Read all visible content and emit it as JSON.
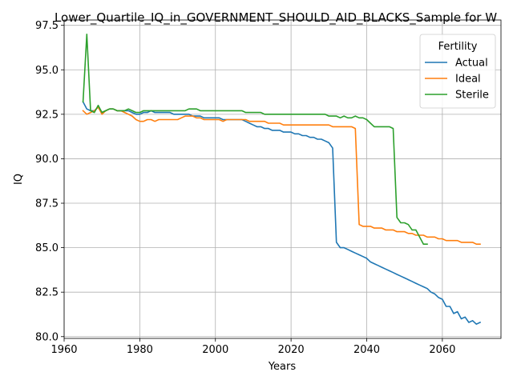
{
  "chart_data": {
    "type": "line",
    "title": "Lower_Quartile_IQ_in_GOVERNMENT_SHOULD_AID_BLACKS_Sample for W",
    "xlabel": "Years",
    "ylabel": "IQ",
    "xlim": [
      1960,
      2075.5
    ],
    "ylim": [
      79.9,
      97.8
    ],
    "xticks": [
      1960,
      1980,
      2000,
      2020,
      2040,
      2060
    ],
    "yticks": [
      80.0,
      82.5,
      85.0,
      87.5,
      90.0,
      92.5,
      95.0,
      97.5
    ],
    "xtick_labels": [
      "1960",
      "1980",
      "2000",
      "2020",
      "2040",
      "2060"
    ],
    "ytick_labels": [
      "80.0",
      "82.5",
      "85.0",
      "87.5",
      "90.0",
      "92.5",
      "95.0",
      "97.5"
    ],
    "grid": true,
    "legend": {
      "title": "Fertility",
      "position": "top-right"
    },
    "series": [
      {
        "name": "Actual",
        "color": "#1f77b4",
        "x": [
          1965,
          1966,
          1967,
          1968,
          1969,
          1970,
          1971,
          1972,
          1973,
          1974,
          1975,
          1976,
          1977,
          1978,
          1979,
          1980,
          1981,
          1982,
          1983,
          1984,
          1985,
          1986,
          1987,
          1988,
          1989,
          1990,
          1991,
          1992,
          1993,
          1994,
          1995,
          1996,
          1997,
          1998,
          1999,
          2000,
          2001,
          2002,
          2003,
          2004,
          2005,
          2006,
          2007,
          2008,
          2009,
          2010,
          2011,
          2012,
          2013,
          2014,
          2015,
          2016,
          2017,
          2018,
          2019,
          2020,
          2021,
          2022,
          2023,
          2024,
          2025,
          2026,
          2027,
          2028,
          2029,
          2030,
          2031,
          2032,
          2033,
          2034,
          2035,
          2036,
          2037,
          2038,
          2039,
          2040,
          2041,
          2042,
          2043,
          2044,
          2045,
          2046,
          2047,
          2048,
          2049,
          2050,
          2051,
          2052,
          2053,
          2054,
          2055,
          2056,
          2057,
          2058,
          2059,
          2060,
          2061,
          2062,
          2063,
          2064,
          2065,
          2066,
          2067,
          2068,
          2069,
          2070
        ],
        "y": [
          93.2,
          92.8,
          92.7,
          92.7,
          92.9,
          92.6,
          92.7,
          92.8,
          92.8,
          92.7,
          92.7,
          92.7,
          92.7,
          92.6,
          92.5,
          92.5,
          92.6,
          92.6,
          92.7,
          92.6,
          92.6,
          92.6,
          92.6,
          92.6,
          92.5,
          92.5,
          92.5,
          92.5,
          92.5,
          92.4,
          92.4,
          92.4,
          92.3,
          92.3,
          92.3,
          92.3,
          92.3,
          92.2,
          92.2,
          92.2,
          92.2,
          92.2,
          92.2,
          92.1,
          92.0,
          91.9,
          91.8,
          91.8,
          91.7,
          91.7,
          91.6,
          91.6,
          91.6,
          91.5,
          91.5,
          91.5,
          91.4,
          91.4,
          91.3,
          91.3,
          91.2,
          91.2,
          91.1,
          91.1,
          91.0,
          90.9,
          90.6,
          85.3,
          85.0,
          85.0,
          84.9,
          84.8,
          84.7,
          84.6,
          84.5,
          84.4,
          84.2,
          84.1,
          84.0,
          83.9,
          83.8,
          83.7,
          83.6,
          83.5,
          83.4,
          83.3,
          83.2,
          83.1,
          83.0,
          82.9,
          82.8,
          82.7,
          82.5,
          82.4,
          82.2,
          82.1,
          81.7,
          81.7,
          81.3,
          81.4,
          81.0,
          81.1,
          80.8,
          80.9,
          80.7,
          80.8
        ]
      },
      {
        "name": "Ideal",
        "color": "#ff7f0e",
        "x": [
          1965,
          1966,
          1967,
          1968,
          1969,
          1970,
          1971,
          1972,
          1973,
          1974,
          1975,
          1976,
          1977,
          1978,
          1979,
          1980,
          1981,
          1982,
          1983,
          1984,
          1985,
          1986,
          1987,
          1988,
          1989,
          1990,
          1991,
          1992,
          1993,
          1994,
          1995,
          1996,
          1997,
          1998,
          1999,
          2000,
          2001,
          2002,
          2003,
          2004,
          2005,
          2006,
          2007,
          2008,
          2009,
          2010,
          2011,
          2012,
          2013,
          2014,
          2015,
          2016,
          2017,
          2018,
          2019,
          2020,
          2021,
          2022,
          2023,
          2024,
          2025,
          2026,
          2027,
          2028,
          2029,
          2030,
          2031,
          2032,
          2033,
          2034,
          2035,
          2036,
          2037,
          2038,
          2039,
          2040,
          2041,
          2042,
          2043,
          2044,
          2045,
          2046,
          2047,
          2048,
          2049,
          2050,
          2051,
          2052,
          2053,
          2054,
          2055,
          2056,
          2057,
          2058,
          2059,
          2060,
          2061,
          2062,
          2063,
          2064,
          2065,
          2066,
          2067,
          2068,
          2069,
          2070
        ],
        "y": [
          92.7,
          92.5,
          92.6,
          92.7,
          92.9,
          92.5,
          92.7,
          92.8,
          92.8,
          92.7,
          92.7,
          92.6,
          92.5,
          92.4,
          92.2,
          92.1,
          92.1,
          92.2,
          92.2,
          92.1,
          92.2,
          92.2,
          92.2,
          92.2,
          92.2,
          92.2,
          92.3,
          92.4,
          92.4,
          92.4,
          92.3,
          92.3,
          92.2,
          92.2,
          92.2,
          92.2,
          92.2,
          92.1,
          92.2,
          92.2,
          92.2,
          92.2,
          92.2,
          92.2,
          92.1,
          92.1,
          92.1,
          92.1,
          92.1,
          92.0,
          92.0,
          92.0,
          92.0,
          91.9,
          91.9,
          91.9,
          91.9,
          91.9,
          91.9,
          91.9,
          91.9,
          91.9,
          91.9,
          91.9,
          91.9,
          91.9,
          91.8,
          91.8,
          91.8,
          91.8,
          91.8,
          91.8,
          91.7,
          86.3,
          86.2,
          86.2,
          86.2,
          86.1,
          86.1,
          86.1,
          86.0,
          86.0,
          86.0,
          85.9,
          85.9,
          85.9,
          85.8,
          85.8,
          85.7,
          85.7,
          85.7,
          85.6,
          85.6,
          85.6,
          85.5,
          85.5,
          85.4,
          85.4,
          85.4,
          85.4,
          85.3,
          85.3,
          85.3,
          85.3,
          85.2,
          85.2
        ]
      },
      {
        "name": "Sterile",
        "color": "#2ca02c",
        "x": [
          1965,
          1966,
          1967,
          1968,
          1969,
          1970,
          1971,
          1972,
          1973,
          1974,
          1975,
          1976,
          1977,
          1978,
          1979,
          1980,
          1981,
          1982,
          1983,
          1984,
          1985,
          1986,
          1987,
          1988,
          1989,
          1990,
          1991,
          1992,
          1993,
          1994,
          1995,
          1996,
          1997,
          1998,
          1999,
          2000,
          2001,
          2002,
          2003,
          2004,
          2005,
          2006,
          2007,
          2008,
          2009,
          2010,
          2011,
          2012,
          2013,
          2014,
          2015,
          2016,
          2017,
          2018,
          2019,
          2020,
          2021,
          2022,
          2023,
          2024,
          2025,
          2026,
          2027,
          2028,
          2029,
          2030,
          2031,
          2032,
          2033,
          2034,
          2035,
          2036,
          2037,
          2038,
          2039,
          2040,
          2041,
          2042,
          2043,
          2044,
          2045,
          2046,
          2047,
          2048,
          2049,
          2050,
          2051,
          2052,
          2053,
          2054,
          2055,
          2056
        ],
        "y": [
          93.2,
          97.0,
          92.7,
          92.6,
          93.0,
          92.6,
          92.7,
          92.8,
          92.8,
          92.7,
          92.7,
          92.7,
          92.8,
          92.7,
          92.6,
          92.6,
          92.7,
          92.7,
          92.7,
          92.7,
          92.7,
          92.7,
          92.7,
          92.7,
          92.7,
          92.7,
          92.7,
          92.7,
          92.8,
          92.8,
          92.8,
          92.7,
          92.7,
          92.7,
          92.7,
          92.7,
          92.7,
          92.7,
          92.7,
          92.7,
          92.7,
          92.7,
          92.7,
          92.6,
          92.6,
          92.6,
          92.6,
          92.6,
          92.5,
          92.5,
          92.5,
          92.5,
          92.5,
          92.5,
          92.5,
          92.5,
          92.5,
          92.5,
          92.5,
          92.5,
          92.5,
          92.5,
          92.5,
          92.5,
          92.5,
          92.4,
          92.4,
          92.4,
          92.3,
          92.4,
          92.3,
          92.3,
          92.4,
          92.3,
          92.3,
          92.2,
          92.0,
          91.8,
          91.8,
          91.8,
          91.8,
          91.8,
          91.7,
          86.7,
          86.4,
          86.4,
          86.3,
          86.0,
          86.0,
          85.6,
          85.2,
          85.2
        ]
      }
    ]
  }
}
